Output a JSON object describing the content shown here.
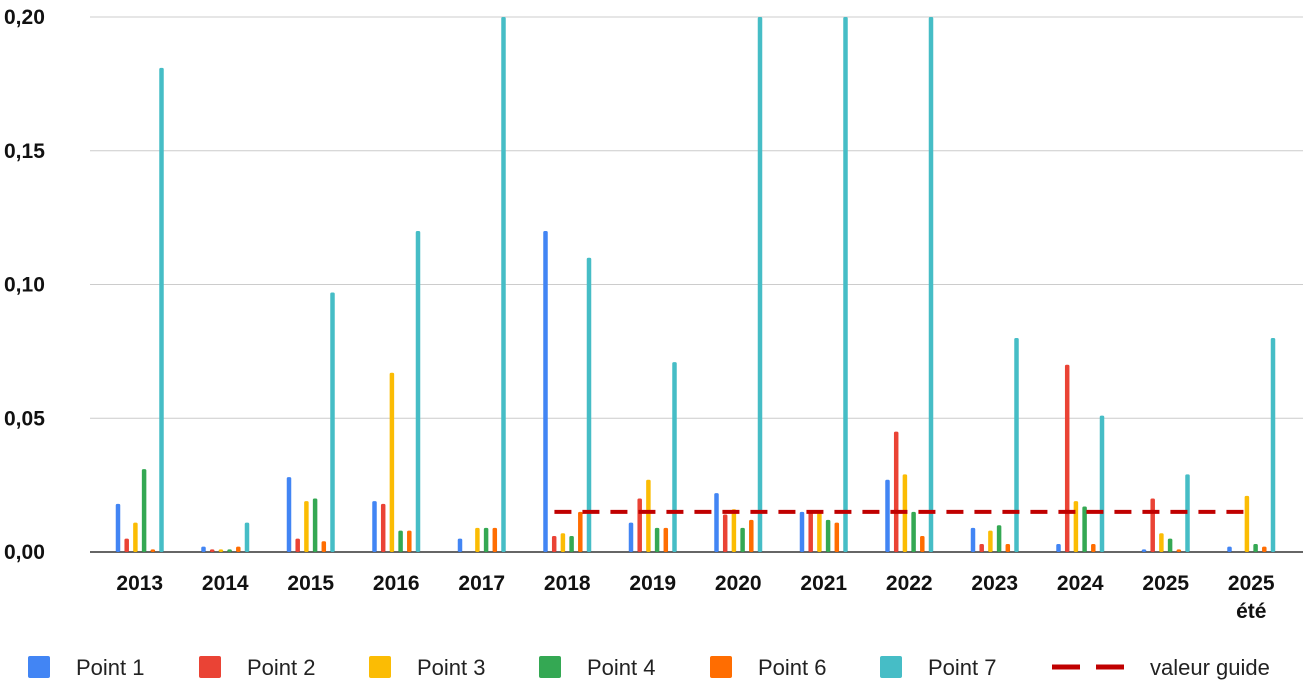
{
  "chart_data": {
    "type": "bar",
    "categories": [
      [
        "2013"
      ],
      [
        "2014"
      ],
      [
        "2015"
      ],
      [
        "2016"
      ],
      [
        "2017"
      ],
      [
        "2018"
      ],
      [
        "2019"
      ],
      [
        "2020"
      ],
      [
        "2021"
      ],
      [
        "2022"
      ],
      [
        "2023"
      ],
      [
        "2024"
      ],
      [
        "2025"
      ],
      [
        "2025",
        "été"
      ]
    ],
    "ylim": [
      0,
      0.2
    ],
    "yticks": [
      "0,00",
      "0,05",
      "0,10",
      "0,15",
      "0,20"
    ],
    "grid": true,
    "legend_position": "bottom",
    "series": [
      {
        "name": "Point 1",
        "color": "#4285F4",
        "values": [
          0.018,
          0.002,
          0.028,
          0.019,
          0.005,
          0.12,
          0.011,
          0.022,
          0.015,
          0.027,
          0.009,
          0.003,
          0.001,
          0.002
        ]
      },
      {
        "name": "Point 2",
        "color": "#EA4335",
        "values": [
          0.005,
          0.001,
          0.005,
          0.018,
          0.0,
          0.006,
          0.02,
          0.014,
          0.015,
          0.045,
          0.003,
          0.07,
          0.02,
          0.0
        ]
      },
      {
        "name": "Point 3",
        "color": "#FBBC04",
        "values": [
          0.011,
          0.001,
          0.019,
          0.067,
          0.009,
          0.007,
          0.027,
          0.016,
          0.015,
          0.029,
          0.008,
          0.019,
          0.007,
          0.021
        ]
      },
      {
        "name": "Point 4",
        "color": "#34A853",
        "values": [
          0.031,
          0.001,
          0.02,
          0.008,
          0.009,
          0.006,
          0.009,
          0.009,
          0.012,
          0.015,
          0.01,
          0.017,
          0.005,
          0.003
        ]
      },
      {
        "name": "Point 6",
        "color": "#FF6D01",
        "values": [
          0.001,
          0.002,
          0.004,
          0.008,
          0.009,
          0.015,
          0.009,
          0.012,
          0.011,
          0.006,
          0.003,
          0.003,
          0.001,
          0.002
        ]
      },
      {
        "name": "Point 7",
        "color": "#46BDC6",
        "values": [
          0.181,
          0.011,
          0.097,
          0.12,
          0.2,
          0.11,
          0.071,
          0.2,
          0.2,
          0.2,
          0.08,
          0.051,
          0.029,
          0.08
        ]
      }
    ],
    "reference_line": {
      "name": "valeur guide",
      "value": 0.015,
      "color": "#C00000",
      "style": "dashed",
      "from_category": 5,
      "to_category": 13
    }
  }
}
